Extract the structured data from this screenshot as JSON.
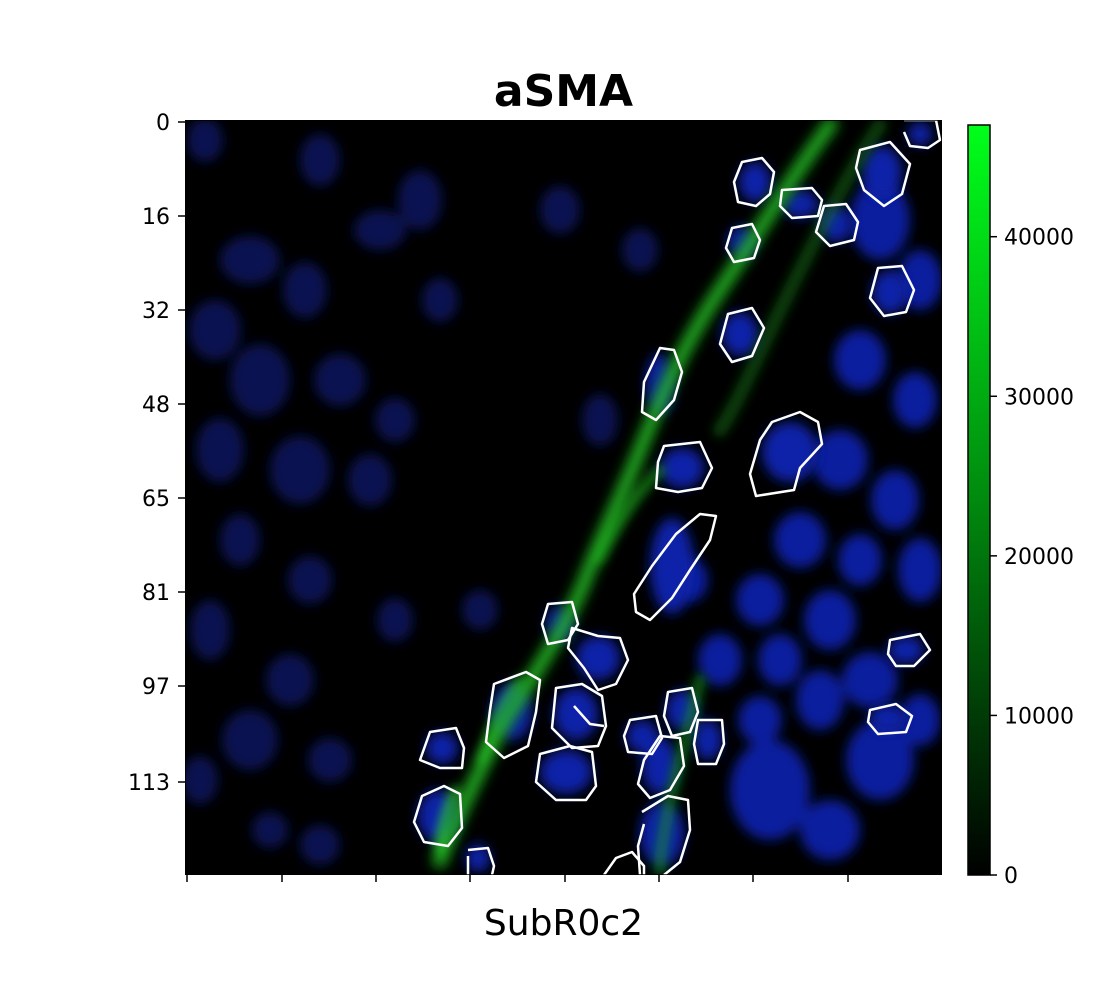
{
  "figure": {
    "title": "aSMA",
    "xlabel": "SubR0c2"
  },
  "image_panel": {
    "content": "fluorescence microscopy image, nuclei in blue, aSMA signal in green, segmented cell outlines in white",
    "y_ticks": [
      "0",
      "16",
      "32",
      "48",
      "65",
      "81",
      "97",
      "113"
    ],
    "x_tick_count": 8,
    "x_tick_labels_visible": false
  },
  "colorbar": {
    "colormap": "black-to-green",
    "color_low": "#000000",
    "color_high": "#00ff1a",
    "min": 0,
    "max": 47000,
    "ticks": [
      "0",
      "10000",
      "20000",
      "30000",
      "40000"
    ],
    "tick_values": [
      0,
      10000,
      20000,
      30000,
      40000
    ]
  },
  "colors": {
    "nuclei": "#0a1a8c",
    "signal": "#22cc22",
    "outline": "#ffffff",
    "background": "#000000"
  }
}
